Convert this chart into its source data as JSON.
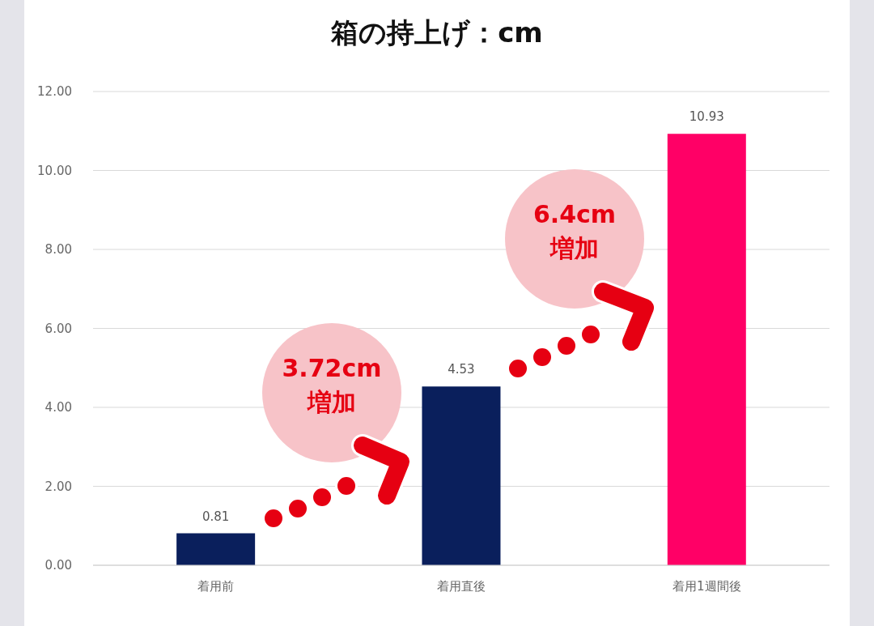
{
  "chart_data": {
    "type": "bar",
    "title": "箱の持上げ：cm",
    "categories": [
      "着用前",
      "着用直後",
      "着用1週間後"
    ],
    "values": [
      0.81,
      4.53,
      10.93
    ],
    "colors": [
      "#0a1f5c",
      "#0a1f5c",
      "#ff0066"
    ],
    "ylim": [
      0,
      12
    ],
    "yticks": [
      {
        "value": 0,
        "label": "0.00"
      },
      {
        "value": 2,
        "label": "2.00"
      },
      {
        "value": 4,
        "label": "4.00"
      },
      {
        "value": 6,
        "label": "6.00"
      },
      {
        "value": 8,
        "label": "8.00"
      },
      {
        "value": 10,
        "label": "10.00"
      },
      {
        "value": 12,
        "label": "12.00"
      }
    ],
    "grid": "y",
    "data_labels": true,
    "annotations": [
      "3.72cm\n増加",
      "6.4cm\n増加"
    ]
  }
}
